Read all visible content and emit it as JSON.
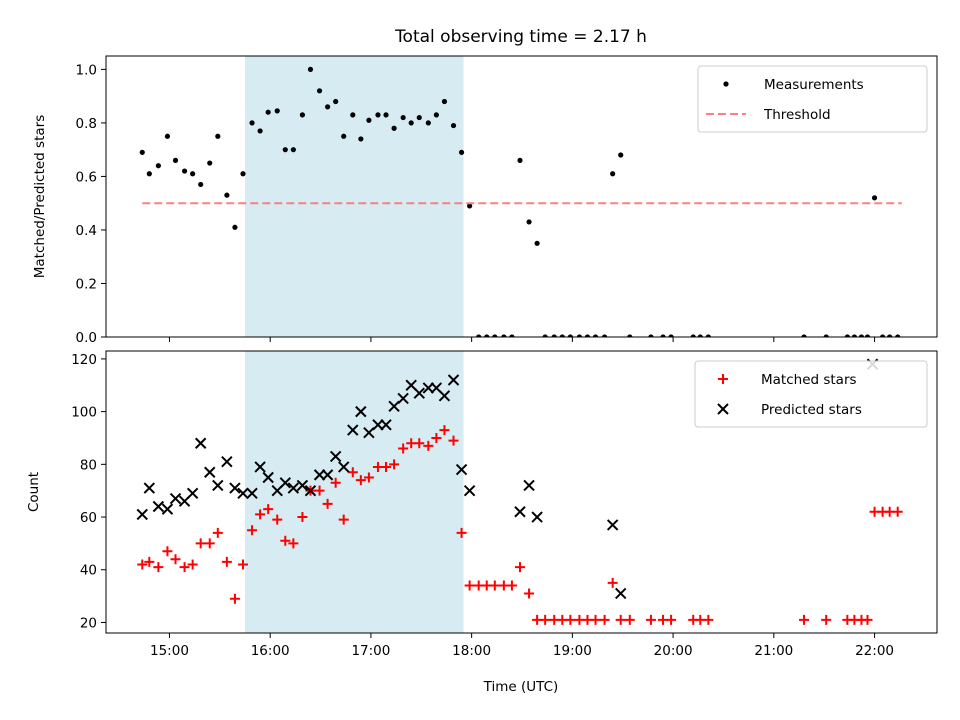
{
  "chart_data": {
    "title": "Total observing time = 2.17 h",
    "xlabel": "Time (UTC)",
    "xunit": "hours UTC",
    "xlim": [
      14.37,
      22.62
    ],
    "xticks": [
      15,
      16,
      17,
      18,
      19,
      20,
      21,
      22
    ],
    "xticklabels": [
      "15:00",
      "16:00",
      "17:00",
      "18:00",
      "19:00",
      "20:00",
      "21:00",
      "22:00"
    ],
    "shaded_interval": {
      "x": [
        15.75,
        17.92
      ],
      "color": "#add8e6"
    },
    "panels": [
      {
        "type": "scatter",
        "ylabel": "Matched/Predicted stars",
        "ylim": [
          0,
          1.05
        ],
        "yticks": [
          0.0,
          0.2,
          0.4,
          0.6,
          0.8,
          1.0
        ],
        "yticklabels": [
          "0.0",
          "0.2",
          "0.4",
          "0.6",
          "0.8",
          "1.0"
        ],
        "legend": "top-right",
        "series": [
          {
            "name": "Measurements",
            "kind": "points",
            "color": "#000000",
            "x": [
              14.73,
              14.8,
              14.89,
              14.98,
              15.06,
              15.15,
              15.23,
              15.31,
              15.4,
              15.48,
              15.57,
              15.65,
              15.73,
              15.82,
              15.9,
              15.98,
              16.07,
              16.15,
              16.23,
              16.32,
              16.4,
              16.49,
              16.57,
              16.65,
              16.73,
              16.82,
              16.9,
              16.98,
              17.07,
              17.15,
              17.23,
              17.32,
              17.4,
              17.48,
              17.57,
              17.65,
              17.73,
              17.82,
              17.9,
              17.98,
              18.07,
              18.15,
              18.23,
              18.32,
              18.4,
              18.48,
              18.57,
              18.65,
              18.73,
              18.82,
              18.9,
              18.98,
              19.07,
              19.15,
              19.23,
              19.32,
              19.4,
              19.48,
              19.57,
              19.78,
              19.9,
              19.98,
              20.2,
              20.27,
              20.35,
              21.3,
              21.52,
              21.73,
              21.8,
              21.87,
              21.93,
              22.0,
              22.08,
              22.15,
              22.23
            ],
            "y": [
              0.69,
              0.61,
              0.64,
              0.75,
              0.66,
              0.62,
              0.61,
              0.57,
              0.65,
              0.75,
              0.53,
              0.41,
              0.61,
              0.8,
              0.77,
              0.84,
              0.845,
              0.7,
              0.7,
              0.83,
              1.0,
              0.92,
              0.86,
              0.88,
              0.75,
              0.83,
              0.74,
              0.81,
              0.83,
              0.83,
              0.78,
              0.82,
              0.8,
              0.82,
              0.8,
              0.83,
              0.88,
              0.79,
              0.69,
              0.49,
              0,
              0,
              0,
              0,
              0,
              0.66,
              0.43,
              0.35,
              0,
              0,
              0,
              0,
              0,
              0,
              0,
              0,
              0.61,
              0.68,
              0,
              0,
              0,
              0,
              0,
              0,
              0,
              0,
              0,
              0,
              0,
              0,
              0,
              0.52,
              0,
              0,
              0
            ]
          },
          {
            "name": "Threshold",
            "kind": "dashed-line",
            "color": "#ff7f7f",
            "x": [
              14.73,
              22.27
            ],
            "y": [
              0.5,
              0.5
            ]
          }
        ]
      },
      {
        "type": "scatter",
        "ylabel": "Count",
        "ylim": [
          16,
          123
        ],
        "yticks": [
          20,
          40,
          60,
          80,
          100,
          120
        ],
        "yticklabels": [
          "20",
          "40",
          "60",
          "80",
          "100",
          "120"
        ],
        "legend": "top-right",
        "series": [
          {
            "name": "Matched stars",
            "marker": "plus",
            "color": "#ff0000",
            "x": [
              14.73,
              14.8,
              14.89,
              14.98,
              15.06,
              15.15,
              15.23,
              15.31,
              15.4,
              15.48,
              15.57,
              15.65,
              15.73,
              15.82,
              15.9,
              15.98,
              16.07,
              16.15,
              16.23,
              16.32,
              16.4,
              16.49,
              16.57,
              16.65,
              16.73,
              16.82,
              16.9,
              16.98,
              17.07,
              17.15,
              17.23,
              17.32,
              17.4,
              17.48,
              17.57,
              17.65,
              17.73,
              17.82,
              17.9,
              17.98,
              18.07,
              18.15,
              18.23,
              18.32,
              18.4,
              18.48,
              18.57,
              18.65,
              18.73,
              18.82,
              18.9,
              18.98,
              19.07,
              19.15,
              19.23,
              19.32,
              19.4,
              19.48,
              19.57,
              19.78,
              19.9,
              19.98,
              20.2,
              20.27,
              20.35,
              21.3,
              21.52,
              21.73,
              21.8,
              21.87,
              21.93,
              22.0,
              22.08,
              22.15,
              22.23
            ],
            "y": [
              42,
              43,
              41,
              47,
              44,
              41,
              42,
              50,
              50,
              54,
              43,
              29,
              42,
              55,
              61,
              63,
              59,
              51,
              50,
              60,
              70,
              70,
              65,
              73,
              59,
              77,
              74,
              75,
              79,
              79,
              80,
              86,
              88,
              88,
              87,
              90,
              93,
              89,
              54,
              34,
              34,
              34,
              34,
              34,
              34,
              41,
              31,
              21,
              21,
              21,
              21,
              21,
              21,
              21,
              21,
              21,
              35,
              21,
              21,
              21,
              21,
              21,
              21,
              21,
              21,
              21,
              21,
              21,
              21,
              21,
              21,
              62,
              62,
              62,
              62
            ]
          },
          {
            "name": "Predicted stars",
            "marker": "x",
            "color": "#000000",
            "x": [
              14.73,
              14.8,
              14.89,
              14.98,
              15.06,
              15.15,
              15.23,
              15.31,
              15.4,
              15.48,
              15.57,
              15.65,
              15.73,
              15.82,
              15.9,
              15.98,
              16.07,
              16.15,
              16.23,
              16.32,
              16.4,
              16.49,
              16.57,
              16.65,
              16.73,
              16.82,
              16.9,
              16.98,
              17.07,
              17.15,
              17.23,
              17.32,
              17.4,
              17.48,
              17.57,
              17.65,
              17.73,
              17.82,
              17.9,
              17.98,
              18.48,
              18.57,
              18.65,
              19.4,
              19.48,
              21.98
            ],
            "y": [
              61,
              71,
              64,
              63,
              67,
              66,
              69,
              88,
              77,
              72,
              81,
              71,
              69,
              69,
              79,
              75,
              70,
              73,
              71,
              72,
              70,
              76,
              76,
              83,
              79,
              93,
              100,
              92,
              95,
              95,
              102,
              105,
              110,
              107,
              109,
              109,
              106,
              112,
              78,
              70,
              62,
              72,
              60,
              57,
              31,
              118
            ]
          }
        ]
      }
    ]
  }
}
